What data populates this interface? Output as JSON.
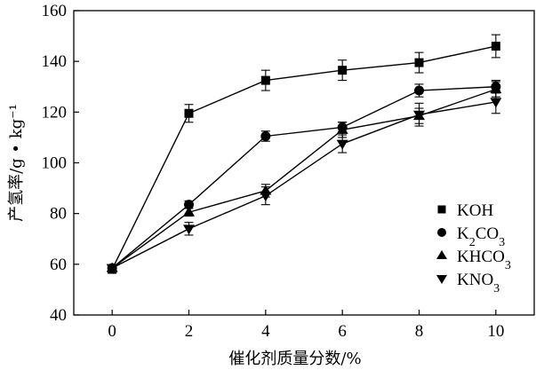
{
  "chart_data": {
    "type": "line",
    "title": "",
    "xlabel": "催化剂质量分数/%",
    "ylabel": "产氢率/g • kg⁻¹",
    "x": [
      0,
      2,
      4,
      6,
      8,
      10
    ],
    "xlim": [
      -1,
      11
    ],
    "ylim": [
      40,
      160
    ],
    "xticks": [
      0,
      2,
      4,
      6,
      8,
      10
    ],
    "yticks": [
      40,
      60,
      80,
      100,
      120,
      140,
      160
    ],
    "legend_position": "bottom-right",
    "grid": false,
    "series": [
      {
        "name": "KOH",
        "marker": "square",
        "values": [
          58,
          119.5,
          132.5,
          136.5,
          139.5,
          146
        ],
        "errors": [
          1,
          3.5,
          4,
          4,
          4,
          4.5
        ]
      },
      {
        "name": "K2CO3",
        "marker": "circle",
        "values": [
          58.5,
          83.5,
          110.5,
          114,
          128.5,
          130
        ],
        "errors": [
          1,
          1.5,
          2,
          2,
          2.5,
          2.5
        ]
      },
      {
        "name": "KHCO3",
        "marker": "triangle-up",
        "values": [
          58.5,
          80.5,
          89,
          113,
          118.5,
          129
        ],
        "errors": [
          1,
          1.5,
          2.5,
          3,
          3,
          3
        ]
      },
      {
        "name": "KNO3",
        "marker": "triangle-down",
        "values": [
          58.5,
          74,
          87,
          107.5,
          119,
          124
        ],
        "errors": [
          1,
          2.5,
          3.5,
          3.5,
          4.5,
          4.5
        ]
      }
    ],
    "legend_labels_html": {
      "KOH": "KOH",
      "K2CO3": "K<tspan baseline-shift=\"sub\" font-size=\"14\">2</tspan>CO<tspan baseline-shift=\"sub\" font-size=\"14\">3</tspan>",
      "KHCO3": "KHCO<tspan baseline-shift=\"sub\" font-size=\"14\">3</tspan>",
      "KNO3": "KNO<tspan baseline-shift=\"sub\" font-size=\"14\">3</tspan>"
    }
  }
}
